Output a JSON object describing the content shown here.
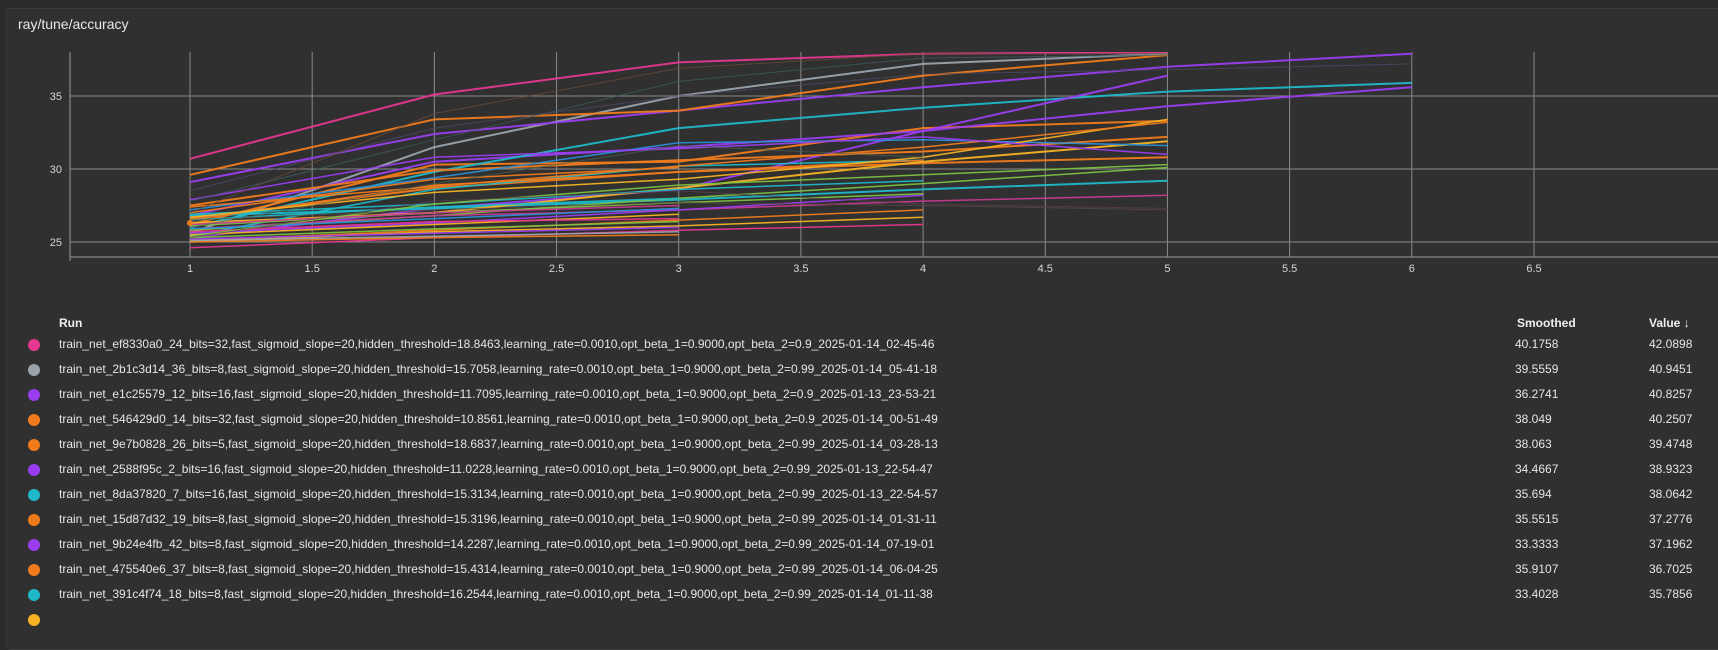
{
  "panel": {
    "title": "ray/tune/accuracy"
  },
  "table": {
    "headers": {
      "run": "Run",
      "smoothed": "Smoothed",
      "value": "Value ↓"
    },
    "rows": [
      {
        "name": "train_net_ef8330a0_24_bits=32,fast_sigmoid_slope=20,hidden_threshold=18.8463,learning_rate=0.0010,opt_beta_1=0.9000,opt_beta_2=0.9_2025-01-14_02-45-46",
        "smoothed": "40.1758",
        "value": "42.0898",
        "color": "#e5378f"
      },
      {
        "name": "train_net_2b1c3d14_36_bits=8,fast_sigmoid_slope=20,hidden_threshold=15.7058,learning_rate=0.0010,opt_beta_1=0.9000,opt_beta_2=0.99_2025-01-14_05-41-18",
        "smoothed": "39.5559",
        "value": "40.9451",
        "color": "#9aa3ab"
      },
      {
        "name": "train_net_e1c25579_12_bits=16,fast_sigmoid_slope=20,hidden_threshold=11.7095,learning_rate=0.0010,opt_beta_1=0.9000,opt_beta_2=0.9_2025-01-13_23-53-21",
        "smoothed": "36.2741",
        "value": "40.8257",
        "color": "#9a3df0"
      },
      {
        "name": "train_net_546429d0_14_bits=32,fast_sigmoid_slope=20,hidden_threshold=10.8561,learning_rate=0.0010,opt_beta_1=0.9000,opt_beta_2=0.9_2025-01-14_00-51-49",
        "smoothed": "38.049",
        "value": "40.2507",
        "color": "#f07b1c"
      },
      {
        "name": "train_net_9e7b0828_26_bits=5,fast_sigmoid_slope=20,hidden_threshold=18.6837,learning_rate=0.0010,opt_beta_1=0.9000,opt_beta_2=0.99_2025-01-14_03-28-13",
        "smoothed": "38.063",
        "value": "39.4748",
        "color": "#f07b1c"
      },
      {
        "name": "train_net_2588f95c_2_bits=16,fast_sigmoid_slope=20,hidden_threshold=11.0228,learning_rate=0.0010,opt_beta_1=0.9000,opt_beta_2=0.99_2025-01-13_22-54-47",
        "smoothed": "34.4667",
        "value": "38.9323",
        "color": "#9a3df0"
      },
      {
        "name": "train_net_8da37820_7_bits=16,fast_sigmoid_slope=20,hidden_threshold=15.3134,learning_rate=0.0010,opt_beta_1=0.9000,opt_beta_2=0.99_2025-01-13_22-54-57",
        "smoothed": "35.694",
        "value": "38.0642",
        "color": "#1fb8c8"
      },
      {
        "name": "train_net_15d87d32_19_bits=8,fast_sigmoid_slope=20,hidden_threshold=15.3196,learning_rate=0.0010,opt_beta_1=0.9000,opt_beta_2=0.99_2025-01-14_01-31-11",
        "smoothed": "35.5515",
        "value": "37.2776",
        "color": "#f07b1c"
      },
      {
        "name": "train_net_9b24e4fb_42_bits=8,fast_sigmoid_slope=20,hidden_threshold=14.2287,learning_rate=0.0010,opt_beta_1=0.9000,opt_beta_2=0.99_2025-01-14_07-19-01",
        "smoothed": "33.3333",
        "value": "37.1962",
        "color": "#9a3df0"
      },
      {
        "name": "train_net_475540e6_37_bits=8,fast_sigmoid_slope=20,hidden_threshold=15.4314,learning_rate=0.0010,opt_beta_1=0.9000,opt_beta_2=0.99_2025-01-14_06-04-25",
        "smoothed": "35.9107",
        "value": "36.7025",
        "color": "#f07b1c"
      },
      {
        "name": "train_net_391c4f74_18_bits=8,fast_sigmoid_slope=20,hidden_threshold=16.2544,learning_rate=0.0010,opt_beta_1=0.9000,opt_beta_2=0.99_2025-01-14_01-11-38",
        "smoothed": "33.4028",
        "value": "35.7856",
        "color": "#1fb8c8"
      },
      {
        "name": "",
        "smoothed": "",
        "value": "",
        "color": "#f5b324"
      }
    ]
  },
  "chart_data": {
    "type": "line",
    "title": "ray/tune/accuracy",
    "xlabel": "",
    "ylabel": "",
    "xlim": [
      0.5,
      6.6
    ],
    "ylim": [
      24,
      37.5
    ],
    "x_ticks": [
      "1",
      "1.5",
      "2",
      "2.5",
      "3",
      "3.5",
      "4",
      "4.5",
      "5",
      "5.5",
      "6",
      "6.5"
    ],
    "y_ticks": [
      "25",
      "30",
      "35"
    ],
    "grid": true,
    "legend": "none",
    "series": [
      {
        "color": "#e5378f",
        "width": 2,
        "x": [
          1,
          2,
          3,
          4,
          5
        ],
        "y": [
          30.7,
          35.1,
          37.3,
          37.9,
          38.0
        ]
      },
      {
        "color": "#9aa3ab",
        "width": 2,
        "x": [
          1,
          2,
          3,
          4,
          5
        ],
        "y": [
          25.6,
          31.5,
          35.0,
          37.2,
          37.9
        ]
      },
      {
        "color": "#9a3df0",
        "width": 2,
        "x": [
          1,
          2,
          3,
          4,
          5,
          6
        ],
        "y": [
          29.1,
          32.4,
          34.0,
          35.6,
          37.0,
          37.9
        ]
      },
      {
        "color": "#f07b1c",
        "width": 2,
        "x": [
          1,
          2,
          3,
          4,
          5
        ],
        "y": [
          29.6,
          33.4,
          34.0,
          36.4,
          37.8
        ]
      },
      {
        "color": "#f07b1c",
        "width": 2,
        "x": [
          1,
          2,
          3,
          4,
          5
        ],
        "y": [
          26.2,
          30.3,
          30.5,
          32.8,
          33.3
        ]
      },
      {
        "color": "#9a3df0",
        "width": 2,
        "x": [
          1,
          2,
          3,
          4,
          5,
          6
        ],
        "y": [
          26.8,
          30.5,
          31.5,
          32.6,
          34.3,
          35.6
        ]
      },
      {
        "color": "#1fb8c8",
        "width": 2,
        "x": [
          1,
          2,
          3,
          4,
          5,
          6
        ],
        "y": [
          26.0,
          29.8,
          32.8,
          34.2,
          35.3,
          35.9
        ]
      },
      {
        "color": "#f07b1c",
        "width": 2,
        "x": [
          1,
          2,
          3,
          4,
          5
        ],
        "y": [
          27.5,
          29.9,
          30.6,
          31.2,
          32.2
        ]
      },
      {
        "color": "#9a3df0",
        "width": 2,
        "x": [
          1,
          2,
          3,
          4,
          5
        ],
        "y": [
          25.3,
          27.3,
          28.6,
          32.6,
          36.4
        ]
      },
      {
        "color": "#f07b1c",
        "width": 2,
        "x": [
          1,
          2,
          3,
          4,
          5
        ],
        "y": [
          26.6,
          28.7,
          29.8,
          30.4,
          30.8
        ]
      },
      {
        "color": "#1fb8c8",
        "width": 2,
        "x": [
          1,
          2,
          3,
          4,
          5
        ],
        "y": [
          26.8,
          27.3,
          27.9,
          28.6,
          29.2
        ]
      },
      {
        "color": "#f5b324",
        "width": 2,
        "x": [
          1,
          2,
          3,
          4,
          5
        ],
        "y": [
          26.3,
          27.0,
          28.7,
          30.5,
          31.9
        ]
      },
      {
        "color": "#2a8fd8",
        "width": 1.5,
        "x": [
          1,
          2,
          3,
          4,
          5
        ],
        "y": [
          27.2,
          29.4,
          31.8,
          32.0,
          31.6
        ]
      },
      {
        "color": "#7cc242",
        "width": 1.5,
        "x": [
          1,
          2,
          3,
          4,
          5
        ],
        "y": [
          25.8,
          26.8,
          28.0,
          29.0,
          30.1
        ]
      },
      {
        "color": "#c83a92",
        "width": 1.5,
        "x": [
          1,
          2,
          3,
          4,
          5
        ],
        "y": [
          25.9,
          26.8,
          27.2,
          27.8,
          28.2
        ]
      },
      {
        "color": "#f07b1c",
        "width": 1.5,
        "x": [
          1,
          2,
          3,
          4
        ],
        "y": [
          25.1,
          25.8,
          26.5,
          27.2
        ]
      },
      {
        "color": "#1fb8c8",
        "width": 1.5,
        "x": [
          1,
          2,
          3,
          4
        ],
        "y": [
          25.4,
          28.6,
          30.2,
          30.6
        ]
      },
      {
        "color": "#9a3df0",
        "width": 1.5,
        "x": [
          1,
          2,
          3,
          4
        ],
        "y": [
          25.6,
          26.3,
          27.2,
          28.2
        ]
      },
      {
        "color": "#f5b324",
        "width": 1.5,
        "x": [
          1,
          2,
          3,
          4
        ],
        "y": [
          25.0,
          25.7,
          26.1,
          26.7
        ]
      },
      {
        "color": "#e5378f",
        "width": 1.5,
        "x": [
          1,
          2,
          3,
          4
        ],
        "y": [
          24.6,
          25.3,
          25.8,
          26.2
        ]
      },
      {
        "color": "#7cc242",
        "width": 1.5,
        "x": [
          1,
          2,
          3,
          4
        ],
        "y": [
          26.1,
          27.0,
          27.7,
          28.3
        ]
      },
      {
        "color": "#f07b1c",
        "width": 1.5,
        "x": [
          1,
          2,
          3,
          4
        ],
        "y": [
          26.5,
          28.9,
          29.8,
          30.6
        ]
      },
      {
        "color": "#1fb8c8",
        "width": 1.5,
        "x": [
          1,
          2,
          3,
          4
        ],
        "y": [
          26.9,
          27.6,
          28.6,
          29.2
        ]
      },
      {
        "color": "#9a3df0",
        "width": 1.5,
        "x": [
          1,
          2,
          3
        ],
        "y": [
          25.2,
          25.6,
          26.0
        ]
      },
      {
        "color": "#f07b1c",
        "width": 1.5,
        "x": [
          1,
          2,
          3
        ],
        "y": [
          25.0,
          25.3,
          25.5
        ]
      },
      {
        "color": "#7cc242",
        "width": 1.5,
        "x": [
          1,
          2,
          3
        ],
        "y": [
          25.3,
          25.9,
          26.4
        ]
      },
      {
        "color": "#f5b324",
        "width": 1.5,
        "x": [
          1,
          2,
          3
        ],
        "y": [
          25.5,
          26.2,
          26.9
        ]
      },
      {
        "color": "#e5378f",
        "width": 1.5,
        "x": [
          1,
          2,
          3
        ],
        "y": [
          25.7,
          26.4,
          26.6
        ]
      },
      {
        "color": "#2a8fd8",
        "width": 1.5,
        "x": [
          1,
          2,
          3
        ],
        "y": [
          25.9,
          26.6,
          27.3
        ]
      },
      {
        "color": "#c83a92",
        "width": 1.5,
        "x": [
          1,
          2,
          3
        ],
        "y": [
          26.2,
          27.0,
          27.5
        ]
      },
      {
        "color": "#1fb8c8",
        "width": 1.5,
        "x": [
          1,
          2,
          3
        ],
        "y": [
          26.5,
          27.4,
          28.0
        ]
      },
      {
        "color": "#9aa3ab",
        "width": 1.5,
        "x": [
          1,
          2,
          3
        ],
        "y": [
          25.1,
          25.4,
          25.7
        ]
      },
      {
        "color": "#f07b1c",
        "width": 1.5,
        "x": [
          1,
          2,
          3
        ],
        "y": [
          27.0,
          29.3,
          30.1
        ]
      },
      {
        "color": "#7cc242",
        "width": 1.5,
        "x": [
          1,
          2,
          3,
          4,
          5
        ],
        "y": [
          25.4,
          27.6,
          28.9,
          29.6,
          30.3
        ]
      },
      {
        "color": "#f5b324",
        "width": 1.5,
        "x": [
          1,
          2,
          3,
          4,
          5
        ],
        "y": [
          26.7,
          28.4,
          29.3,
          30.8,
          33.4
        ]
      },
      {
        "color": "#f07b1c",
        "width": 1.5,
        "x": [
          1,
          2,
          3,
          4,
          5
        ],
        "y": [
          27.4,
          28.8,
          30.2,
          31.5,
          33.2
        ]
      },
      {
        "color": "#9a3df0",
        "width": 1.5,
        "x": [
          1,
          2,
          3,
          4,
          5
        ],
        "y": [
          27.9,
          30.8,
          31.4,
          32.2,
          31.0
        ]
      },
      {
        "color": "#5a4a44",
        "width": 1,
        "x": [
          1,
          2,
          3,
          4,
          5
        ],
        "y": [
          26.5,
          27.2,
          27.7,
          27.5,
          27.2
        ]
      },
      {
        "color": "#3f5e66",
        "width": 1,
        "x": [
          1,
          2,
          3,
          4,
          5
        ],
        "y": [
          27.8,
          32.0,
          36.0,
          37.6,
          37.8
        ]
      },
      {
        "color": "#4f4a6a",
        "width": 1,
        "x": [
          1,
          2,
          3,
          4,
          5,
          6
        ],
        "y": [
          28.5,
          32.8,
          35.0,
          36.5,
          36.8,
          37.2
        ]
      },
      {
        "color": "#6a4c3c",
        "width": 1,
        "x": [
          1,
          2,
          3,
          4,
          5
        ],
        "y": [
          27.0,
          33.8,
          36.9,
          37.9,
          37.9
        ]
      },
      {
        "color": "#4a6050",
        "width": 1,
        "x": [
          1,
          2,
          3,
          4
        ],
        "y": [
          26.0,
          29.0,
          31.6,
          30.8
        ]
      },
      {
        "color": "#5c3e52",
        "width": 1,
        "x": [
          1,
          2,
          3,
          4,
          5
        ],
        "y": [
          25.3,
          27.8,
          28.5,
          27.6,
          27.3
        ]
      }
    ]
  }
}
